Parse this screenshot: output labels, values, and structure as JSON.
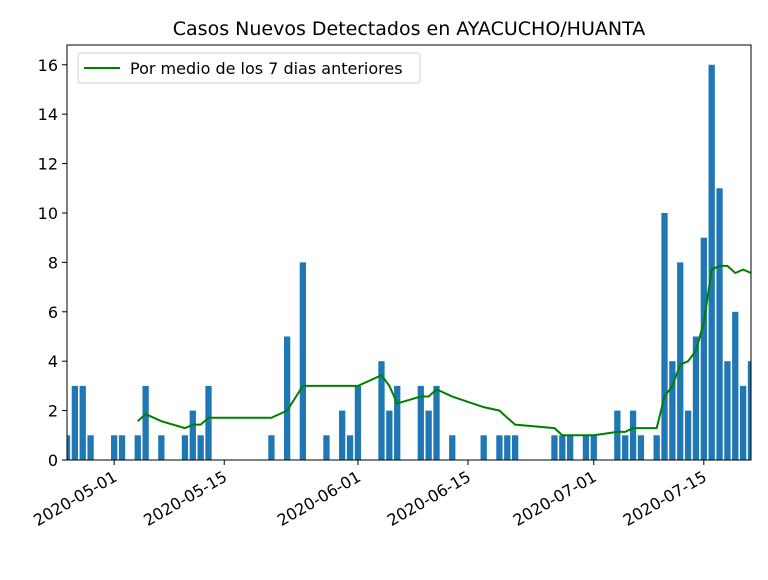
{
  "chart_data": {
    "type": "bar",
    "title": "Casos Nuevos Detectados en AYACUCHO/HUANTA",
    "x": [
      "2020-04-25",
      "2020-04-26",
      "2020-04-27",
      "2020-04-28",
      "2020-05-01",
      "2020-05-02",
      "2020-05-04",
      "2020-05-05",
      "2020-05-07",
      "2020-05-10",
      "2020-05-11",
      "2020-05-12",
      "2020-05-13",
      "2020-05-21",
      "2020-05-23",
      "2020-05-25",
      "2020-05-28",
      "2020-05-30",
      "2020-05-31",
      "2020-06-01",
      "2020-06-04",
      "2020-06-05",
      "2020-06-06",
      "2020-06-09",
      "2020-06-10",
      "2020-06-11",
      "2020-06-13",
      "2020-06-17",
      "2020-06-19",
      "2020-06-20",
      "2020-06-21",
      "2020-06-26",
      "2020-06-27",
      "2020-06-28",
      "2020-06-30",
      "2020-07-01",
      "2020-07-04",
      "2020-07-05",
      "2020-07-06",
      "2020-07-07",
      "2020-07-09",
      "2020-07-10",
      "2020-07-11",
      "2020-07-12",
      "2020-07-13",
      "2020-07-14",
      "2020-07-15",
      "2020-07-16",
      "2020-07-17",
      "2020-07-18",
      "2020-07-19",
      "2020-07-20",
      "2020-07-21"
    ],
    "series": [
      {
        "type": "bar",
        "color": "#1f77b4",
        "values": [
          1,
          3,
          3,
          1,
          1,
          1,
          1,
          3,
          1,
          1,
          2,
          1,
          3,
          1,
          5,
          8,
          1,
          2,
          1,
          3,
          4,
          2,
          3,
          3,
          2,
          3,
          1,
          1,
          1,
          1,
          1,
          1,
          1,
          1,
          1,
          1,
          2,
          1,
          2,
          1,
          1,
          10,
          4,
          8,
          2,
          5,
          9,
          16,
          11,
          4,
          6,
          3,
          4
        ]
      },
      {
        "type": "line",
        "name": "Por medio de los 7 dias anteriores",
        "color": "#008000",
        "values": [
          null,
          null,
          null,
          null,
          null,
          null,
          1.57,
          1.86,
          1.57,
          1.29,
          1.43,
          1.43,
          1.71,
          1.71,
          2.0,
          3.0,
          3.0,
          3.0,
          3.0,
          3.0,
          3.43,
          3.0,
          2.29,
          2.57,
          2.57,
          2.86,
          2.57,
          2.14,
          2.0,
          1.71,
          1.43,
          1.29,
          1.0,
          1.0,
          1.0,
          1.0,
          1.14,
          1.14,
          1.29,
          1.29,
          1.29,
          2.57,
          3.0,
          3.86,
          4.0,
          4.43,
          5.57,
          7.71,
          7.86,
          7.86,
          7.57,
          7.71,
          7.57
        ]
      }
    ],
    "xlim": [
      "2020-04-25",
      "2020-07-21"
    ],
    "xticks": [
      "2020-05-01",
      "2020-05-15",
      "2020-06-01",
      "2020-06-15",
      "2020-07-01",
      "2020-07-15"
    ],
    "ylim": [
      0,
      16.8
    ],
    "yticks": [
      0,
      2,
      4,
      6,
      8,
      10,
      12,
      14,
      16
    ],
    "legend": "upper left"
  }
}
